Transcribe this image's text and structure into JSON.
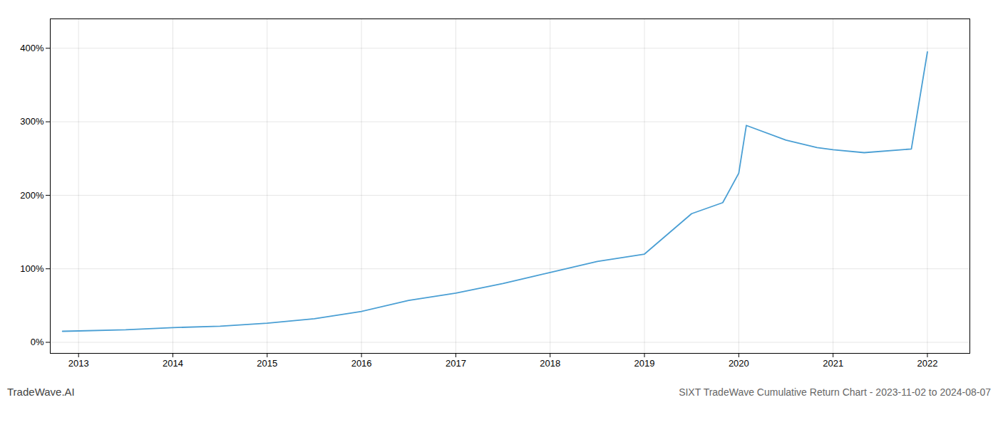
{
  "chart_data": {
    "type": "line",
    "title": "SIXT TradeWave Cumulative Return Chart - 2023-11-02 to 2024-08-07",
    "annotations": [
      "TradeWave.AI"
    ],
    "x": [
      2012.83,
      2013.0,
      2013.5,
      2014.0,
      2014.5,
      2015.0,
      2015.5,
      2016.0,
      2016.5,
      2017.0,
      2017.5,
      2017.83,
      2018.0,
      2018.5,
      2019.0,
      2019.5,
      2019.83,
      2020.0,
      2020.08,
      2020.5,
      2020.83,
      2021.0,
      2021.33,
      2021.83,
      2022.0
    ],
    "values": [
      15,
      15.5,
      17,
      20,
      22,
      26,
      32,
      42,
      57,
      67,
      80,
      90,
      95,
      110,
      120,
      175,
      190,
      230,
      295,
      275,
      265,
      262,
      258,
      263,
      395
    ],
    "color": "#4a9fd4",
    "xlim": [
      2012.7,
      2022.45
    ],
    "xticks": [
      2013,
      2014,
      2015,
      2016,
      2017,
      2018,
      2019,
      2020,
      2021,
      2022
    ],
    "ylim": [
      -15,
      440
    ],
    "yticks": [
      {
        "value": 0,
        "label": "0%"
      },
      {
        "value": 100,
        "label": "100%"
      },
      {
        "value": 200,
        "label": "200%"
      },
      {
        "value": 300,
        "label": "300%"
      },
      {
        "value": 400,
        "label": "400%"
      }
    ],
    "grid": true
  }
}
